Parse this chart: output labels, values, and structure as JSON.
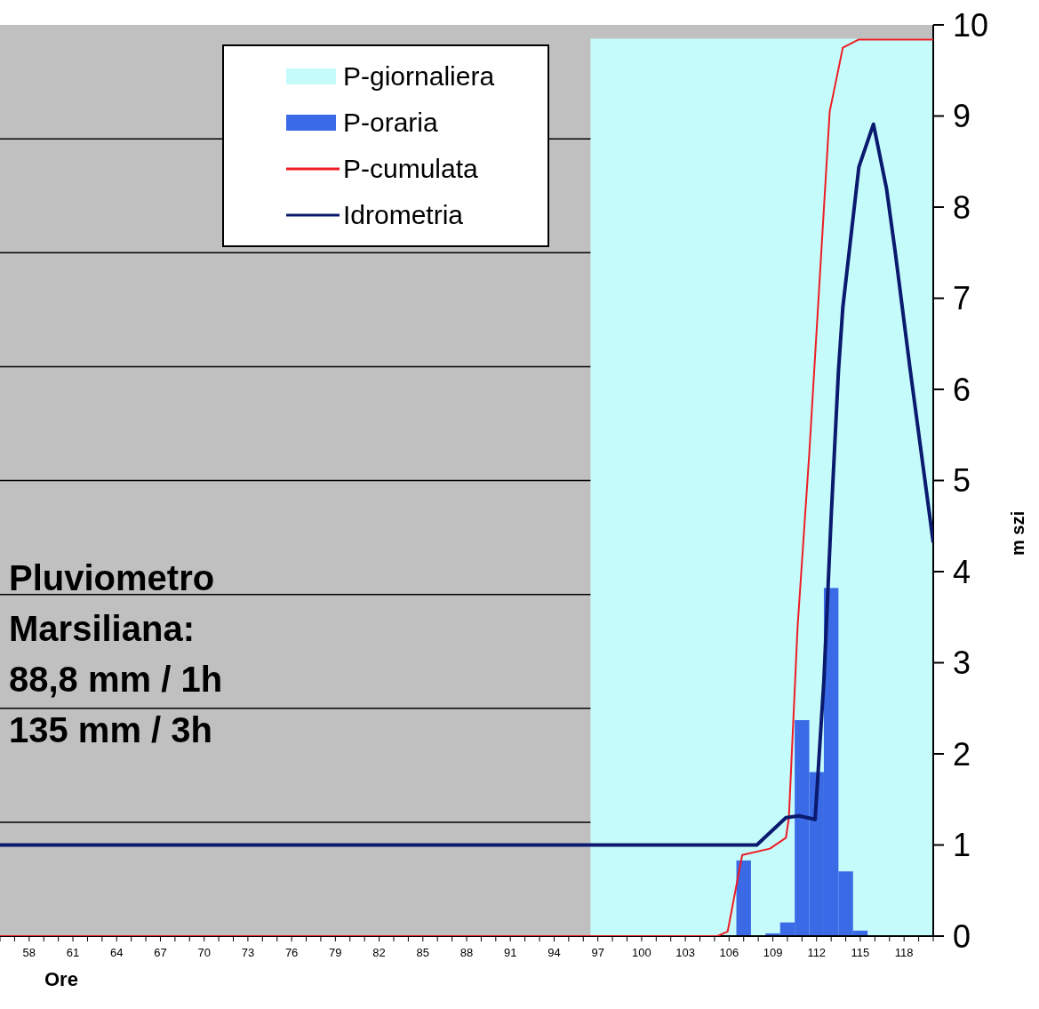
{
  "chart_data": {
    "type": "line",
    "xlabel": "Ore",
    "ylabel": "m szi",
    "xlim": [
      56,
      120
    ],
    "ylim": [
      0,
      10
    ],
    "yticks": [
      0,
      1,
      2,
      3,
      4,
      5,
      6,
      7,
      8,
      9,
      10
    ],
    "xticks": [
      {
        "value": 56,
        "label": null
      },
      {
        "value": 57,
        "label": null
      },
      58,
      {
        "value": 59,
        "label": null
      },
      {
        "value": 60,
        "label": null
      },
      61,
      {
        "value": 62,
        "label": null
      },
      {
        "value": 63,
        "label": null
      },
      64,
      {
        "value": 65,
        "label": null
      },
      {
        "value": 66,
        "label": null
      },
      67,
      {
        "value": 68,
        "label": null
      },
      {
        "value": 69,
        "label": null
      },
      70,
      {
        "value": 71,
        "label": null
      },
      {
        "value": 72,
        "label": null
      },
      73,
      {
        "value": 74,
        "label": null
      },
      {
        "value": 75,
        "label": null
      },
      76,
      {
        "value": 77,
        "label": null
      },
      {
        "value": 78,
        "label": null
      },
      79,
      {
        "value": 80,
        "label": null
      },
      {
        "value": 81,
        "label": null
      },
      82,
      {
        "value": 83,
        "label": null
      },
      {
        "value": 84,
        "label": null
      },
      85,
      {
        "value": 86,
        "label": null
      },
      {
        "value": 87,
        "label": null
      },
      88,
      {
        "value": 89,
        "label": null
      },
      {
        "value": 90,
        "label": null
      },
      91,
      {
        "value": 92,
        "label": null
      },
      {
        "value": 93,
        "label": null
      },
      94,
      {
        "value": 95,
        "label": null
      },
      {
        "value": 96,
        "label": null
      },
      97,
      {
        "value": 98,
        "label": null
      },
      {
        "value": 99,
        "label": null
      },
      100,
      {
        "value": 101,
        "label": null
      },
      {
        "value": 102,
        "label": null
      },
      103,
      {
        "value": 104,
        "label": null
      },
      {
        "value": 105,
        "label": null
      },
      106,
      {
        "value": 107,
        "label": null
      },
      {
        "value": 108,
        "label": null
      },
      109,
      {
        "value": 110,
        "label": null
      },
      {
        "value": 111,
        "label": null
      },
      112,
      {
        "value": 113,
        "label": null
      },
      {
        "value": 114,
        "label": null
      },
      115,
      {
        "value": 116,
        "label": null
      },
      {
        "value": 117,
        "label": null
      },
      118,
      {
        "value": 119,
        "label": null
      },
      {
        "value": 120,
        "label": null
      }
    ],
    "legend": "top",
    "grid": false,
    "ref_lines": [
      {
        "axis": "y",
        "value": 1.25,
        "color": "#000000"
      },
      {
        "axis": "y",
        "value": 2.5,
        "color": "#000000"
      },
      {
        "axis": "y",
        "value": 3.75,
        "color": "#000000"
      },
      {
        "axis": "y",
        "value": 5,
        "color": "#000000"
      },
      {
        "axis": "y",
        "value": 6.25,
        "color": "#000000"
      },
      {
        "axis": "y",
        "value": 7.5,
        "color": "#000000"
      },
      {
        "axis": "y",
        "value": 8.75,
        "color": "#000000"
      }
    ],
    "annotations": [
      "Pluviometro",
      "Marsiliana:",
      "88,8 mm / 1h",
      "135 mm / 3h"
    ],
    "series": [
      {
        "name": "P-giornaliera",
        "type": "area",
        "color": "#c6fbfb",
        "x": [
          96.5,
          120
        ],
        "values": [
          9.85,
          9.85
        ]
      },
      {
        "name": "P-oraria",
        "type": "bar",
        "color": "#3a6ae6",
        "x": [
          107,
          109,
          110,
          111,
          112,
          113,
          114,
          115
        ],
        "values": [
          0.83,
          0.03,
          0.15,
          2.37,
          1.8,
          3.82,
          0.71,
          0.06
        ]
      },
      {
        "name": "P-cumulata",
        "color": "#ee1c24",
        "x": [
          56,
          105.2,
          105.9,
          106.9,
          108.8,
          109.9,
          110.1,
          110.7,
          111.5,
          112.9,
          113.8,
          114.9,
          120
        ],
        "values": [
          0,
          0,
          0.05,
          0.89,
          0.96,
          1.08,
          1.3,
          3.4,
          5.3,
          9.05,
          9.75,
          9.84,
          9.84
        ]
      },
      {
        "name": "Idrometria",
        "color": "#0a1a6e",
        "x": [
          56,
          107.9,
          109.9,
          110.8,
          111.9,
          112.5,
          113,
          113.5,
          113.8,
          114.9,
          115.9,
          116.8,
          117.4,
          118.4,
          120
        ],
        "values": [
          1,
          1,
          1.3,
          1.32,
          1.28,
          2.8,
          4.6,
          6.2,
          6.9,
          8.44,
          8.91,
          8.2,
          7.5,
          6.24,
          4.32
        ]
      }
    ]
  }
}
